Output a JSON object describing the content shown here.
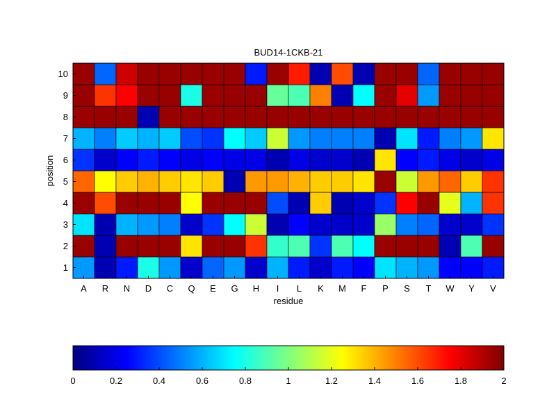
{
  "chart_data": {
    "type": "heatmap",
    "title": "BUD14-1CKB-21",
    "xlabel": "residue",
    "ylabel": "position",
    "x_categories": [
      "A",
      "R",
      "N",
      "D",
      "C",
      "Q",
      "E",
      "G",
      "H",
      "I",
      "L",
      "K",
      "M",
      "F",
      "P",
      "S",
      "T",
      "W",
      "Y",
      "V"
    ],
    "y_categories": [
      "1",
      "2",
      "3",
      "4",
      "5",
      "6",
      "7",
      "8",
      "9",
      "10"
    ],
    "colormap": "jet",
    "clim": [
      0,
      2
    ],
    "colorbar": {
      "orientation": "horizontal",
      "placement": "bottom",
      "ticks": [
        "0",
        "0.2",
        "0.4",
        "0.6",
        "0.8",
        "1",
        "1.2",
        "1.4",
        "1.6",
        "1.8",
        "2"
      ]
    },
    "values": [
      [
        0.55,
        0.1,
        0.3,
        0.8,
        0.55,
        0.15,
        0.45,
        0.55,
        0.15,
        0.6,
        0.3,
        0.15,
        0.3,
        0.25,
        0.7,
        0.6,
        0.55,
        0.25,
        0.25,
        0.3
      ],
      [
        1.95,
        0.1,
        1.95,
        1.95,
        1.95,
        1.3,
        1.95,
        1.95,
        1.65,
        0.85,
        0.9,
        0.35,
        0.9,
        0.75,
        1.95,
        1.95,
        1.95,
        0.1,
        0.9,
        1.95
      ],
      [
        0.7,
        0.1,
        0.6,
        0.55,
        0.5,
        0.15,
        0.35,
        0.75,
        1.15,
        0.1,
        0.25,
        0.15,
        0.15,
        0.15,
        1.05,
        0.5,
        0.45,
        0.15,
        0.15,
        0.35
      ],
      [
        1.95,
        1.6,
        1.95,
        1.95,
        1.95,
        1.25,
        1.95,
        1.95,
        1.95,
        0.4,
        0.1,
        1.35,
        0.1,
        0.15,
        0.35,
        1.75,
        1.95,
        1.2,
        0.6,
        1.65
      ],
      [
        1.55,
        1.25,
        1.35,
        1.4,
        1.35,
        1.3,
        1.35,
        0.1,
        1.45,
        1.45,
        1.4,
        1.35,
        1.35,
        1.3,
        1.95,
        1.15,
        1.45,
        1.55,
        1.35,
        1.65
      ],
      [
        0.35,
        0.15,
        0.25,
        0.3,
        0.25,
        0.2,
        0.25,
        0.2,
        0.2,
        0.1,
        0.2,
        0.15,
        0.15,
        0.1,
        1.3,
        0.25,
        0.3,
        0.2,
        0.15,
        0.2
      ],
      [
        0.6,
        0.5,
        0.65,
        0.6,
        0.65,
        0.4,
        0.35,
        0.75,
        0.65,
        1.15,
        0.55,
        0.5,
        0.5,
        0.5,
        0.1,
        0.7,
        0.3,
        0.5,
        0.55,
        1.3
      ],
      [
        1.95,
        1.95,
        1.95,
        0.1,
        1.95,
        1.95,
        1.95,
        1.95,
        1.95,
        1.95,
        1.95,
        1.95,
        1.95,
        1.95,
        1.95,
        1.95,
        1.95,
        1.95,
        1.95,
        1.95
      ],
      [
        1.95,
        1.65,
        1.75,
        1.95,
        1.95,
        0.8,
        1.95,
        1.95,
        1.95,
        0.95,
        0.9,
        1.5,
        0.1,
        0.75,
        1.95,
        1.8,
        0.55,
        1.95,
        1.95,
        1.95
      ],
      [
        1.95,
        0.45,
        1.85,
        1.95,
        1.95,
        1.95,
        1.95,
        1.95,
        0.3,
        1.95,
        1.7,
        0.1,
        1.6,
        0.1,
        1.95,
        1.95,
        0.45,
        1.95,
        1.95,
        1.95
      ]
    ]
  }
}
